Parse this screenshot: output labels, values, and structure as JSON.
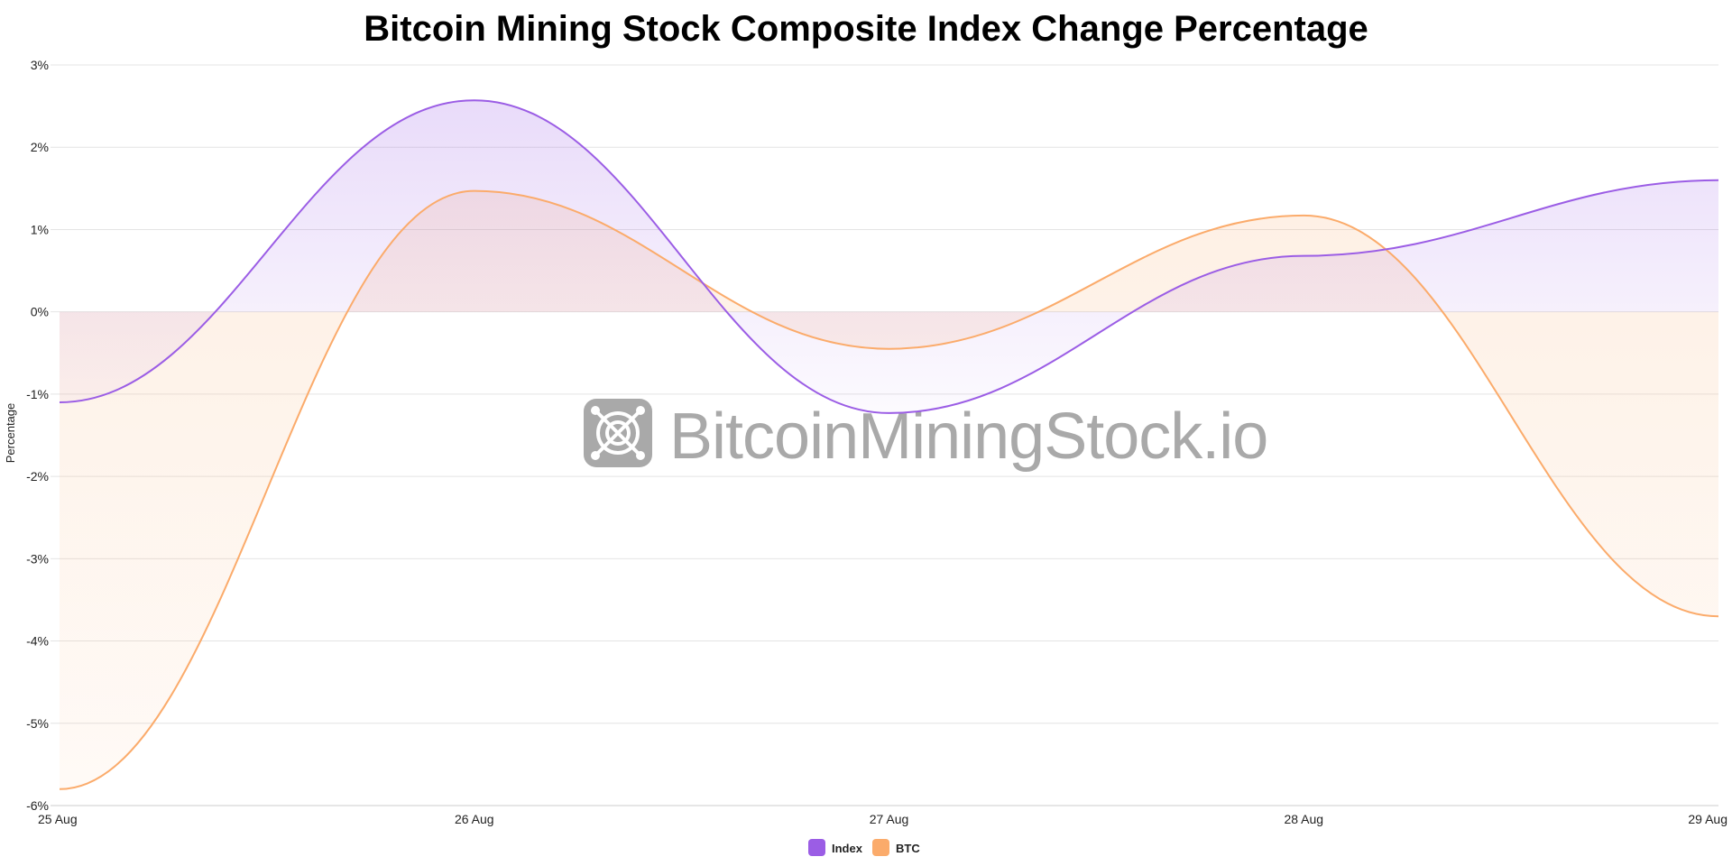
{
  "chart_data": {
    "type": "area",
    "title": "Bitcoin Mining Stock Composite Index Change Percentage",
    "xlabel": "",
    "ylabel": "Percentage",
    "categories": [
      "25 Aug",
      "26 Aug",
      "27 Aug",
      "28 Aug",
      "29 Aug"
    ],
    "ylim": [
      -6,
      3
    ],
    "yticks": [
      {
        "value": 3,
        "label": "3%"
      },
      {
        "value": 2,
        "label": "2%"
      },
      {
        "value": 1,
        "label": "1%"
      },
      {
        "value": 0,
        "label": "0%"
      },
      {
        "value": -1,
        "label": "-1%"
      },
      {
        "value": -2,
        "label": "-2%"
      },
      {
        "value": -3,
        "label": "-3%"
      },
      {
        "value": -4,
        "label": "-4%"
      },
      {
        "value": -5,
        "label": "-5%"
      },
      {
        "value": -6,
        "label": "-6%"
      }
    ],
    "grid": true,
    "legend_position": "bottom-center",
    "series": [
      {
        "name": "Index",
        "values": [
          -1.1,
          2.57,
          -1.23,
          0.68,
          1.6
        ],
        "color": "#9b5de5"
      },
      {
        "name": "BTC",
        "values": [
          -5.8,
          1.47,
          -0.45,
          1.17,
          -3.7
        ],
        "color": "#fbab6b"
      }
    ]
  },
  "watermark": {
    "text": "BitcoinMiningStock.io",
    "logo_icon": "mining-logo-icon"
  }
}
